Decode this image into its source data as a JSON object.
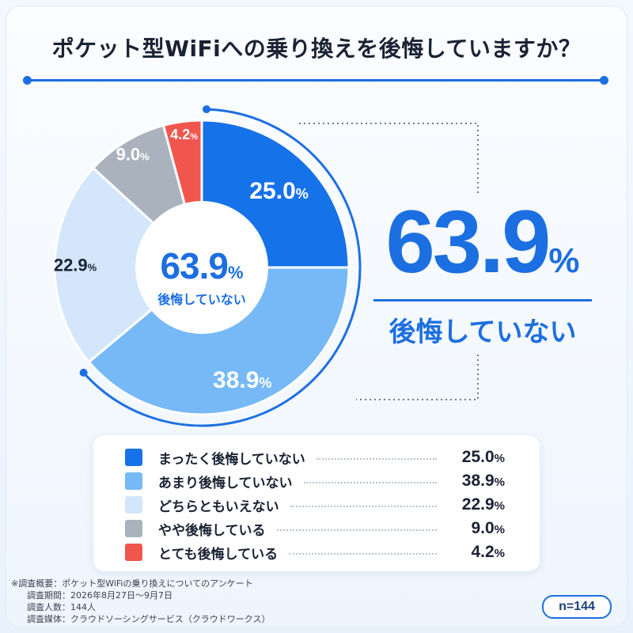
{
  "title": "ポケット型WiFiへの乗り換えを後悔していますか？",
  "chart_data": {
    "type": "pie",
    "title": "ポケット型WiFiへの乗り換えを後悔していますか？",
    "donut": true,
    "unit": "%",
    "start": "12 o'clock, clockwise",
    "slices": [
      {
        "label": "まったく後悔していない",
        "value": 25.0,
        "display": "25.0",
        "color": "#1672e8"
      },
      {
        "label": "あまり後悔していない",
        "value": 38.9,
        "display": "38.9",
        "color": "#76b9f6"
      },
      {
        "label": "どちらともいえない",
        "value": 22.9,
        "display": "22.9",
        "color": "#d3e6fb"
      },
      {
        "label": "やや後悔している",
        "value": 9.0,
        "display": "9.0",
        "color": "#a9b2bd"
      },
      {
        "label": "とても後悔している",
        "value": 4.2,
        "display": "4.2",
        "color": "#f0564d"
      }
    ],
    "center": {
      "value": "63.9",
      "unit": "%",
      "label": "後悔していない"
    },
    "highlight": {
      "value": "63.9",
      "unit": "%",
      "label": "後悔していない",
      "includes": [
        "まったく後悔していない",
        "あまり後悔していない"
      ]
    }
  },
  "notes": [
    "※調査概要：ポケット型WiFiの乗り換えについてのアンケート",
    "調査期間：2026年8月27日～9月7日",
    "調査人数：144人",
    "調査媒体：クラウドソーシングサービス（クラウドワークス）"
  ],
  "sample_size": "n=144",
  "colors": {
    "accent": "#1c6fe0",
    "text": "#1a2233"
  }
}
